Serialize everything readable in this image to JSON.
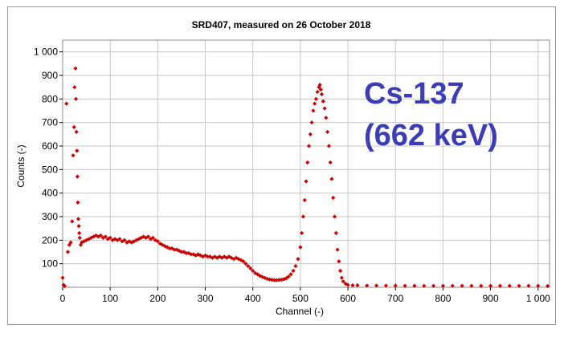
{
  "chart_data": {
    "type": "scatter",
    "title": "SRD407, measured on 26 October 2018",
    "xlabel": "Channel (-)",
    "ylabel": "Counts (-)",
    "xlim": [
      0,
      1024
    ],
    "ylim": [
      0,
      1050
    ],
    "x_ticks": [
      0,
      100,
      200,
      300,
      400,
      500,
      600,
      700,
      800,
      900,
      1000
    ],
    "x_tick_labels": [
      "0",
      "100",
      "200",
      "300",
      "400",
      "500",
      "600",
      "700",
      "800",
      "900",
      "1 000"
    ],
    "y_ticks": [
      100,
      200,
      300,
      400,
      500,
      600,
      700,
      800,
      900,
      1000
    ],
    "y_tick_labels": [
      "100",
      "200",
      "300",
      "400",
      "500",
      "600",
      "700",
      "800",
      "900",
      "1 000"
    ],
    "grid": true,
    "marker_color": "#cc0000",
    "annotation_lines": [
      "Cs-137",
      "(662 keV)"
    ],
    "annotation_color": "#3c3cb8",
    "series": [
      {
        "points": [
          [
            0,
            40
          ],
          [
            2,
            10
          ],
          [
            4,
            5
          ],
          [
            8,
            780
          ],
          [
            11,
            150
          ],
          [
            14,
            180
          ],
          [
            17,
            190
          ],
          [
            20,
            280
          ],
          [
            22,
            560
          ],
          [
            24,
            680
          ],
          [
            25,
            850
          ],
          [
            27,
            930
          ],
          [
            28,
            800
          ],
          [
            29,
            660
          ],
          [
            30,
            580
          ],
          [
            31,
            470
          ],
          [
            32,
            360
          ],
          [
            33,
            290
          ],
          [
            34,
            260
          ],
          [
            35,
            230
          ],
          [
            36,
            210
          ],
          [
            38,
            180
          ],
          [
            40,
            190
          ],
          [
            45,
            195
          ],
          [
            50,
            200
          ],
          [
            55,
            205
          ],
          [
            60,
            210
          ],
          [
            65,
            215
          ],
          [
            70,
            220
          ],
          [
            75,
            215
          ],
          [
            80,
            220
          ],
          [
            85,
            210
          ],
          [
            90,
            215
          ],
          [
            95,
            205
          ],
          [
            100,
            210
          ],
          [
            105,
            200
          ],
          [
            110,
            205
          ],
          [
            115,
            200
          ],
          [
            120,
            205
          ],
          [
            125,
            195
          ],
          [
            130,
            200
          ],
          [
            135,
            190
          ],
          [
            140,
            195
          ],
          [
            145,
            190
          ],
          [
            150,
            195
          ],
          [
            155,
            200
          ],
          [
            160,
            205
          ],
          [
            165,
            210
          ],
          [
            170,
            215
          ],
          [
            175,
            210
          ],
          [
            180,
            215
          ],
          [
            185,
            205
          ],
          [
            190,
            210
          ],
          [
            195,
            200
          ],
          [
            200,
            195
          ],
          [
            205,
            185
          ],
          [
            210,
            180
          ],
          [
            215,
            175
          ],
          [
            220,
            170
          ],
          [
            225,
            165
          ],
          [
            230,
            165
          ],
          [
            235,
            160
          ],
          [
            240,
            160
          ],
          [
            245,
            155
          ],
          [
            250,
            150
          ],
          [
            255,
            150
          ],
          [
            260,
            145
          ],
          [
            265,
            145
          ],
          [
            270,
            140
          ],
          [
            275,
            140
          ],
          [
            280,
            135
          ],
          [
            285,
            140
          ],
          [
            290,
            135
          ],
          [
            295,
            130
          ],
          [
            300,
            135
          ],
          [
            305,
            130
          ],
          [
            310,
            130
          ],
          [
            315,
            125
          ],
          [
            320,
            130
          ],
          [
            325,
            125
          ],
          [
            330,
            130
          ],
          [
            335,
            125
          ],
          [
            340,
            130
          ],
          [
            345,
            125
          ],
          [
            350,
            130
          ],
          [
            355,
            125
          ],
          [
            360,
            120
          ],
          [
            365,
            125
          ],
          [
            370,
            120
          ],
          [
            375,
            115
          ],
          [
            380,
            110
          ],
          [
            385,
            100
          ],
          [
            390,
            90
          ],
          [
            395,
            80
          ],
          [
            400,
            70
          ],
          [
            405,
            60
          ],
          [
            410,
            55
          ],
          [
            415,
            48
          ],
          [
            420,
            44
          ],
          [
            425,
            40
          ],
          [
            430,
            36
          ],
          [
            435,
            33
          ],
          [
            440,
            32
          ],
          [
            445,
            30
          ],
          [
            450,
            30
          ],
          [
            455,
            31
          ],
          [
            460,
            32
          ],
          [
            465,
            34
          ],
          [
            470,
            38
          ],
          [
            475,
            45
          ],
          [
            480,
            55
          ],
          [
            485,
            70
          ],
          [
            490,
            90
          ],
          [
            495,
            120
          ],
          [
            500,
            170
          ],
          [
            503,
            230
          ],
          [
            506,
            300
          ],
          [
            509,
            370
          ],
          [
            512,
            450
          ],
          [
            515,
            530
          ],
          [
            518,
            600
          ],
          [
            521,
            650
          ],
          [
            524,
            700
          ],
          [
            527,
            750
          ],
          [
            530,
            780
          ],
          [
            533,
            800
          ],
          [
            536,
            830
          ],
          [
            539,
            850
          ],
          [
            541,
            860
          ],
          [
            543,
            840
          ],
          [
            545,
            820
          ],
          [
            548,
            790
          ],
          [
            551,
            760
          ],
          [
            554,
            720
          ],
          [
            557,
            660
          ],
          [
            560,
            600
          ],
          [
            563,
            530
          ],
          [
            566,
            460
          ],
          [
            569,
            380
          ],
          [
            572,
            300
          ],
          [
            575,
            230
          ],
          [
            578,
            160
          ],
          [
            581,
            110
          ],
          [
            584,
            70
          ],
          [
            587,
            40
          ],
          [
            590,
            25
          ],
          [
            595,
            15
          ],
          [
            600,
            10
          ],
          [
            610,
            8
          ],
          [
            620,
            8
          ],
          [
            640,
            7
          ],
          [
            660,
            7
          ],
          [
            680,
            7
          ],
          [
            700,
            7
          ],
          [
            720,
            6
          ],
          [
            740,
            6
          ],
          [
            760,
            6
          ],
          [
            780,
            6
          ],
          [
            800,
            6
          ],
          [
            820,
            6
          ],
          [
            840,
            6
          ],
          [
            860,
            6
          ],
          [
            880,
            6
          ],
          [
            900,
            6
          ],
          [
            920,
            6
          ],
          [
            940,
            6
          ],
          [
            960,
            6
          ],
          [
            980,
            6
          ],
          [
            1000,
            6
          ],
          [
            1020,
            5
          ]
        ]
      }
    ]
  }
}
